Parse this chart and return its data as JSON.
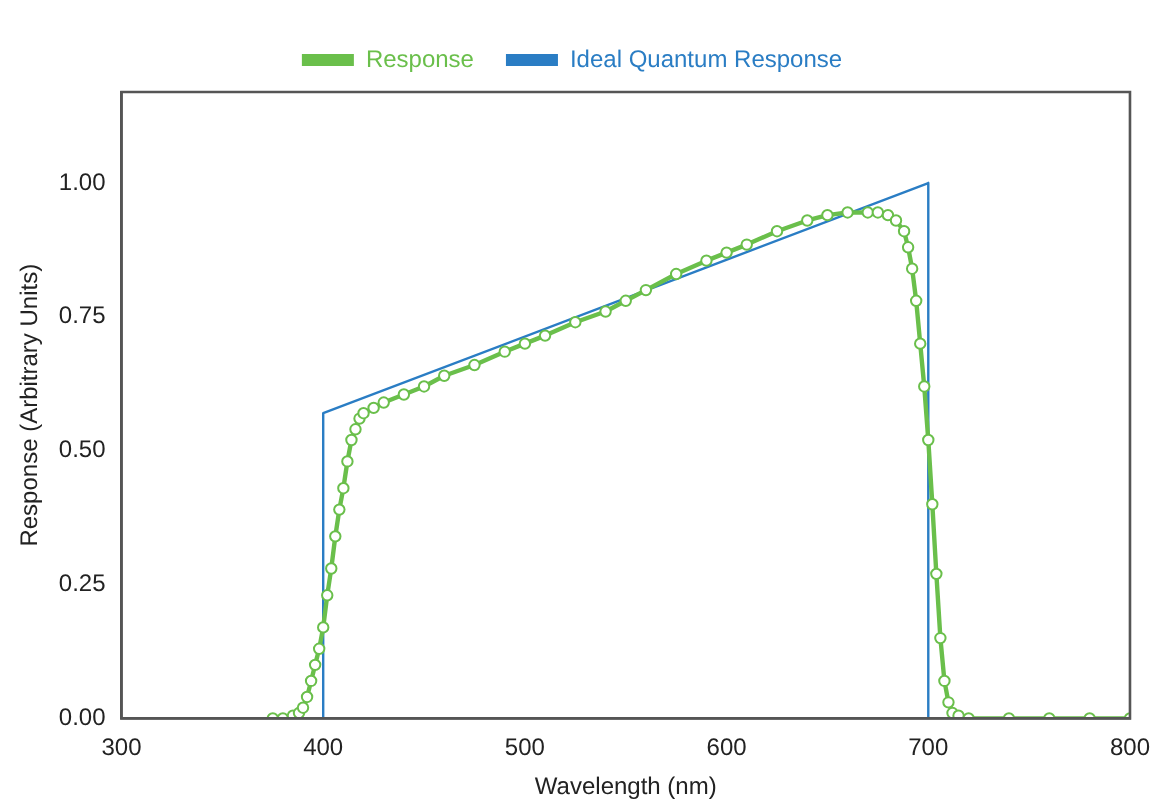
{
  "chart_data": {
    "type": "line",
    "xlabel": "Wavelength (nm)",
    "ylabel": "Response (Arbitrary Units)",
    "xlim": [
      300,
      800
    ],
    "xticks": [
      300,
      400,
      500,
      600,
      700,
      800
    ],
    "ylim": [
      0,
      1.17
    ],
    "yticks": [
      {
        "value": 0,
        "label": "0.00"
      },
      {
        "value": 0.25,
        "label": "0.25"
      },
      {
        "value": 0.5,
        "label": "0.50"
      },
      {
        "value": 0.75,
        "label": "0.75"
      },
      {
        "value": 1,
        "label": "1.00"
      }
    ],
    "grid": false,
    "legend": "top",
    "marker": "circle",
    "line_style": "solid",
    "series": [
      {
        "name": "Response",
        "color": "#6abf4b",
        "x": [
          375,
          380,
          385,
          388,
          390,
          392,
          394,
          396,
          398,
          400,
          402,
          404,
          406,
          408,
          410,
          412,
          414,
          416,
          418,
          420,
          425,
          430,
          440,
          450,
          460,
          475,
          490,
          500,
          510,
          525,
          540,
          550,
          560,
          575,
          590,
          600,
          610,
          625,
          640,
          650,
          660,
          670,
          675,
          680,
          684,
          688,
          690,
          692,
          694,
          696,
          698,
          700,
          702,
          704,
          706,
          708,
          710,
          712,
          715,
          720,
          740,
          760,
          780,
          800
        ],
        "values": [
          0,
          0,
          0.005,
          0.01,
          0.02,
          0.04,
          0.07,
          0.1,
          0.13,
          0.17,
          0.23,
          0.28,
          0.34,
          0.39,
          0.43,
          0.48,
          0.52,
          0.54,
          0.56,
          0.57,
          0.58,
          0.59,
          0.605,
          0.62,
          0.64,
          0.66,
          0.685,
          0.7,
          0.715,
          0.74,
          0.76,
          0.78,
          0.8,
          0.83,
          0.855,
          0.87,
          0.885,
          0.91,
          0.93,
          0.94,
          0.945,
          0.945,
          0.945,
          0.94,
          0.93,
          0.91,
          0.88,
          0.84,
          0.78,
          0.7,
          0.62,
          0.52,
          0.4,
          0.27,
          0.15,
          0.07,
          0.03,
          0.01,
          0.005,
          0,
          0,
          0,
          0,
          0
        ]
      },
      {
        "name": "Ideal Quantum Response",
        "color": "#2a7dc4",
        "marker": "none",
        "x": [
          400,
          400,
          700,
          700
        ],
        "values": [
          0,
          0.57,
          1,
          0
        ]
      }
    ]
  }
}
